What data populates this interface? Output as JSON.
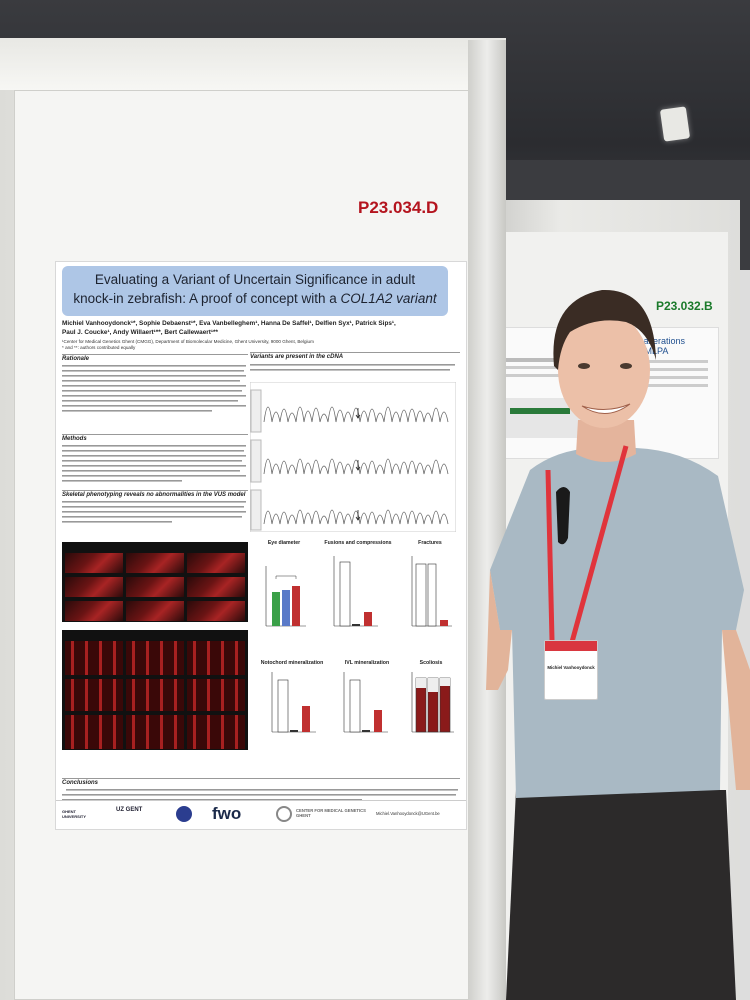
{
  "poster_main": {
    "code": "P23.034.D",
    "title_line1": "Evaluating a Variant of Uncertain Significance in adult",
    "title_line2_prefix": "knock-in zebrafish: A proof of concept with a ",
    "title_line2_italic": "COL1A2 variant",
    "authors_line1": "Michiel Vanhooydonck¹*, Sophie Debaenst¹*, Eva Vanbelleghem¹, Hanna De Saffel¹, Delfien Syx¹, Patrick Sips¹,",
    "authors_line2": "Paul J. Coucke¹, Andy Willaert¹**, Bert Callewaert¹**",
    "affiliation_line1": "¹Center for Medical Genetics Ghent (CMGG), Department of Biomolecular Medicine, Ghent University, 9000 Ghent, Belgium",
    "affiliation_line2": "* and **: authors contributed equally",
    "sections": {
      "rationale": "Rationale",
      "methods": "Methods",
      "skeletal": "Skeletal phenotyping reveals no abnormalities in the VUS model",
      "cdna": "Variants are present in the cDNA",
      "conclusions": "Conclusions"
    },
    "chart_titles": {
      "eye": "Eye diameter",
      "fusions": "Fusions and compressions",
      "fractures": "Fractures",
      "notochord": "Notochord mineralization",
      "ivl": "IVL mineralization",
      "scoliosis": "Scoliosis"
    },
    "logos": {
      "ghent": "GHENT UNIVERSITY",
      "uz": "UZ GENT",
      "fwo": "fwo",
      "cmgg": "CENTER FOR MEDICAL GENETICS GHENT",
      "email": "Michiel.Vanhooydonck@UGent.be"
    }
  },
  "poster_second": {
    "code": "P23.032.B",
    "title": "ber alterations gitalMLPA"
  },
  "badge": {
    "name": "Michiel Vanhooydonck",
    "role": ""
  },
  "colors": {
    "poster_code_red": "#b4141e",
    "poster_code_green": "#1a7a2a",
    "title_box_blue": "#aec6e6",
    "floor_red": "#b92a22",
    "shirt": "#a9b9c4",
    "lanyard": "#e0343c"
  }
}
